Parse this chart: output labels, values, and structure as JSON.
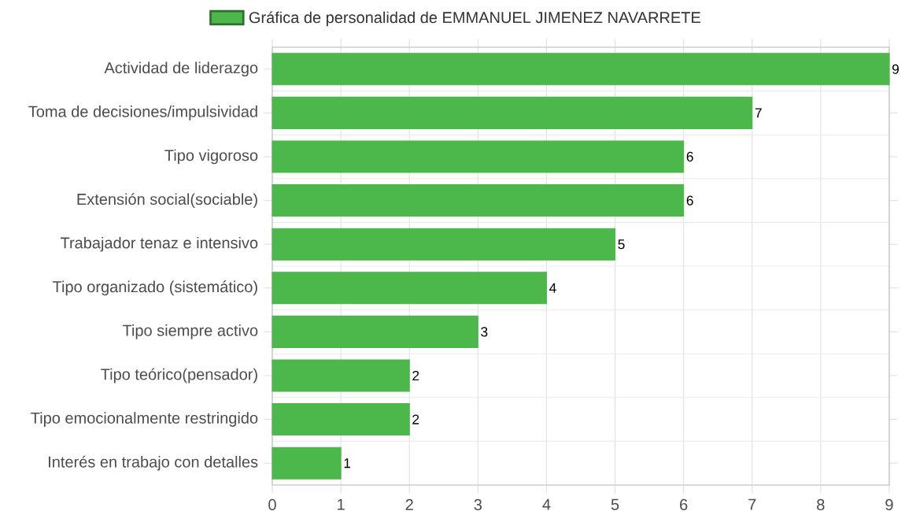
{
  "chart_data": {
    "type": "bar",
    "orientation": "horizontal",
    "categories": [
      "Actividad de liderazgo",
      "Toma de decisiones/impulsividad",
      "Tipo vigoroso",
      "Extensión social(sociable)",
      "Trabajador tenaz e intensivo",
      "Tipo organizado (sistemático)",
      "Tipo siempre activo",
      "Tipo teórico(pensador)",
      "Tipo emocionalmente restringido",
      "Interés en trabajo con detalles"
    ],
    "series": [
      {
        "name": "Gráfica de personalidad de EMMANUEL JIMENEZ NAVARRETE",
        "color": "#4cb84c",
        "values": [
          9,
          7,
          6,
          6,
          5,
          4,
          3,
          2,
          2,
          1
        ]
      }
    ],
    "xlim": [
      0,
      9
    ],
    "xticks": [
      0,
      1,
      2,
      3,
      4,
      5,
      6,
      7,
      8,
      9
    ],
    "grid": true,
    "legend": "top",
    "data_labels": true
  }
}
